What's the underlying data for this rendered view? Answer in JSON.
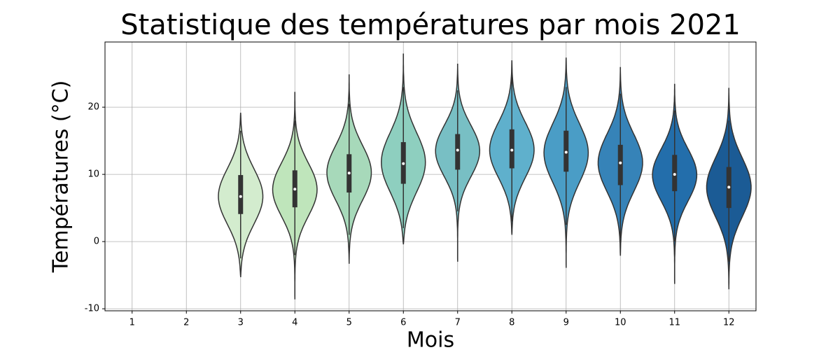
{
  "chart_data": {
    "type": "violin",
    "title": "Statistique des températures par mois 2021",
    "x_label": "Mois",
    "y_label": "Températures (°C)",
    "categories": [
      "1",
      "2",
      "3",
      "4",
      "5",
      "6",
      "7",
      "8",
      "9",
      "10",
      "11",
      "12"
    ],
    "violins": [
      null,
      null,
      {
        "color": "#d3ecce",
        "min": -5.3,
        "whisker_low": -2.5,
        "q1": 4.1,
        "median": 6.7,
        "q3": 9.9,
        "whisker_high": 16.5,
        "max": 19.1
      },
      {
        "color": "#bfe5bb",
        "min": -8.6,
        "whisker_low": -2.0,
        "q1": 5.1,
        "median": 7.8,
        "q3": 10.6,
        "whisker_high": 18,
        "max": 22.2
      },
      {
        "color": "#a7d9ba",
        "min": -3.3,
        "whisker_low": 1,
        "q1": 7.3,
        "median": 10.2,
        "q3": 13.0,
        "whisker_high": 20.5,
        "max": 24.8
      },
      {
        "color": "#8ecfbf",
        "min": -0.4,
        "whisker_low": 2,
        "q1": 8.6,
        "median": 11.6,
        "q3": 14.8,
        "whisker_high": 23,
        "max": 27.9
      },
      {
        "color": "#78bfc4",
        "min": -3.0,
        "whisker_low": 4.5,
        "q1": 10.7,
        "median": 13.6,
        "q3": 16.0,
        "whisker_high": 22.5,
        "max": 26.4
      },
      {
        "color": "#5fb0cc",
        "min": 1.0,
        "whisker_low": 3,
        "q1": 10.9,
        "median": 13.6,
        "q3": 16.7,
        "whisker_high": 24.5,
        "max": 26.9
      },
      {
        "color": "#4a9dc6",
        "min": -3.9,
        "whisker_low": 2.5,
        "q1": 10.4,
        "median": 13.3,
        "q3": 16.5,
        "whisker_high": 23,
        "max": 27.3
      },
      {
        "color": "#3683b8",
        "min": -2.1,
        "whisker_low": 0.5,
        "q1": 8.4,
        "median": 11.7,
        "q3": 14.4,
        "whisker_high": 22,
        "max": 25.9
      },
      {
        "color": "#236eab",
        "min": -6.3,
        "whisker_low": 0,
        "q1": 7.5,
        "median": 10.0,
        "q3": 12.9,
        "whisker_high": 19.5,
        "max": 23.4
      },
      {
        "color": "#1b5b95",
        "min": -7.1,
        "whisker_low": -3,
        "q1": 5.0,
        "median": 8.1,
        "q3": 11.1,
        "whisker_high": 18,
        "max": 22.8
      }
    ],
    "ylim": [
      -10.3,
      29.7
    ],
    "yticks": [
      -10,
      0,
      10,
      20
    ],
    "grid": true
  }
}
